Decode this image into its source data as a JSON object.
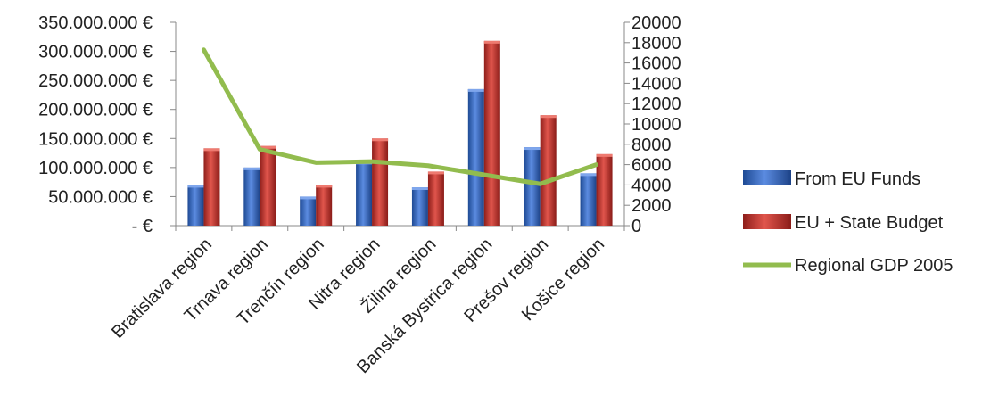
{
  "chart_data": {
    "type": "bar",
    "categories": [
      "Bratislava region",
      "Trnava region",
      "Trenčín region",
      "Nitra region",
      "Žilina region",
      "Banská Bystrica region",
      "Prešov region",
      "Košice region"
    ],
    "series": [
      {
        "name": "From EU Funds",
        "type": "bar",
        "axis": "left",
        "color": "#2F62B8",
        "values": [
          70000000,
          100000000,
          50000000,
          110000000,
          66000000,
          235000000,
          135000000,
          90000000
        ]
      },
      {
        "name": "EU + State Budget",
        "type": "bar",
        "axis": "left",
        "color": "#C0312B",
        "values": [
          133000000,
          137000000,
          70000000,
          150000000,
          93000000,
          318000000,
          190000000,
          123000000
        ]
      },
      {
        "name": "Regional GDP 2005",
        "type": "line",
        "axis": "right",
        "color": "#92BC4E",
        "values": [
          17300,
          7500,
          6200,
          6300,
          5900,
          5000,
          4100,
          6000
        ]
      }
    ],
    "y_left": {
      "ylim": [
        0,
        350000000
      ],
      "ticks": [
        0,
        50000000,
        100000000,
        150000000,
        200000000,
        250000000,
        300000000,
        350000000
      ],
      "tick_labels": [
        "-   €",
        "50.000.000 €",
        "100.000.000 €",
        "150.000.000 €",
        "200.000.000 €",
        "250.000.000 €",
        "300.000.000 €",
        "350.000.000 €"
      ]
    },
    "y_right": {
      "ylim": [
        0,
        20000
      ],
      "ticks": [
        0,
        2000,
        4000,
        6000,
        8000,
        10000,
        12000,
        14000,
        16000,
        18000,
        20000
      ],
      "tick_labels": [
        "0",
        "2000",
        "4000",
        "6000",
        "8000",
        "10000",
        "12000",
        "14000",
        "16000",
        "18000",
        "20000"
      ]
    },
    "grid": false,
    "legend": {
      "placement": "right",
      "entries": [
        "From EU Funds",
        "EU + State Budget",
        "Regional GDP 2005"
      ]
    }
  }
}
